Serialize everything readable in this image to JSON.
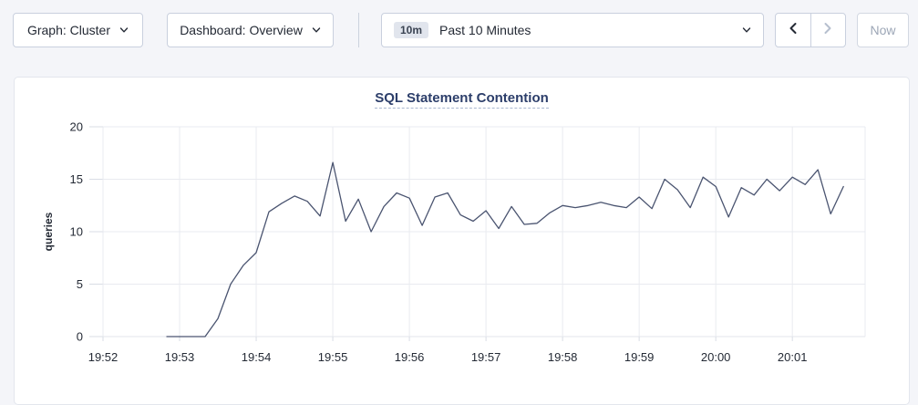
{
  "toolbar": {
    "graph_dropdown_label": "Graph: Cluster",
    "dashboard_dropdown_label": "Dashboard: Overview",
    "time_picker": {
      "badge": "10m",
      "label": "Past 10 Minutes"
    },
    "now_button_label": "Now"
  },
  "colors": {
    "page_bg": "#f4f5f9",
    "card_bg": "#ffffff",
    "title_navy": "#2c3e6a",
    "line": "#4a5470",
    "gridline": "#e9ebf0",
    "zero_line": "#e3e5eb",
    "tick_stub": "#d9dde5",
    "axis_text": "#242a35",
    "disabled": "#b6bfce"
  },
  "chart_data": {
    "type": "line",
    "title": "SQL Statement Contention",
    "xlabel": "",
    "ylabel": "queries",
    "ylim": [
      0,
      20
    ],
    "yticks": [
      0,
      5,
      10,
      15,
      20
    ],
    "xlim_sec": [
      0,
      597
    ],
    "xticks": [
      {
        "label": "19:52",
        "sec": 0
      },
      {
        "label": "19:53",
        "sec": 60
      },
      {
        "label": "19:54",
        "sec": 120
      },
      {
        "label": "19:55",
        "sec": 180
      },
      {
        "label": "19:56",
        "sec": 240
      },
      {
        "label": "19:57",
        "sec": 300
      },
      {
        "label": "19:58",
        "sec": 360
      },
      {
        "label": "19:59",
        "sec": 420
      },
      {
        "label": "20:00",
        "sec": 480
      },
      {
        "label": "20:01",
        "sec": 540
      }
    ],
    "grid": true,
    "legend_position": "none",
    "series": [
      {
        "name": "queries",
        "color": "#4a5470",
        "x_start_sec": 50,
        "x_step_sec": 10,
        "values": [
          0,
          0,
          0,
          0,
          1.7,
          5.0,
          6.8,
          8.0,
          11.9,
          12.7,
          13.4,
          12.9,
          11.5,
          16.6,
          11.0,
          13.1,
          10.0,
          12.4,
          13.7,
          13.2,
          10.6,
          13.3,
          13.7,
          11.6,
          11.0,
          12.0,
          10.3,
          12.4,
          10.7,
          10.8,
          11.8,
          12.5,
          12.3,
          12.5,
          12.8,
          12.5,
          12.3,
          13.3,
          12.2,
          15.0,
          14.0,
          12.3,
          15.2,
          14.3,
          11.4,
          14.2,
          13.5,
          15.0,
          13.9,
          15.2,
          14.5,
          15.9,
          11.7,
          14.3
        ]
      }
    ]
  }
}
